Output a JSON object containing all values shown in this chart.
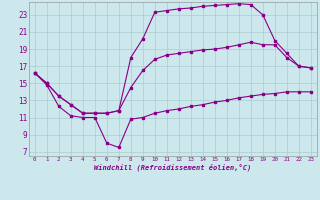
{
  "xlabel": "Windchill (Refroidissement éolien,°C)",
  "bg_color": "#cce8ed",
  "grid_color": "#aacccc",
  "line_color": "#880088",
  "xlim": [
    -0.5,
    23.5
  ],
  "ylim": [
    6.5,
    24.5
  ],
  "xticks": [
    0,
    1,
    2,
    3,
    4,
    5,
    6,
    7,
    8,
    9,
    10,
    11,
    12,
    13,
    14,
    15,
    16,
    17,
    18,
    19,
    20,
    21,
    22,
    23
  ],
  "yticks": [
    7,
    9,
    11,
    13,
    15,
    17,
    19,
    21,
    23
  ],
  "curve_top_x": [
    0,
    1,
    2,
    3,
    4,
    5,
    6,
    7,
    8,
    9,
    10,
    11,
    12,
    13,
    14,
    15,
    16,
    17,
    18,
    19,
    20,
    21,
    22,
    23
  ],
  "curve_top_y": [
    16.2,
    15.0,
    13.5,
    12.5,
    11.5,
    11.5,
    11.5,
    11.8,
    18.0,
    20.2,
    23.3,
    23.5,
    23.7,
    23.8,
    24.0,
    24.1,
    24.2,
    24.3,
    24.2,
    23.0,
    20.0,
    18.5,
    17.0,
    16.8
  ],
  "curve_mid_x": [
    0,
    1,
    2,
    3,
    4,
    5,
    6,
    7,
    8,
    9,
    10,
    11,
    12,
    13,
    14,
    15,
    16,
    17,
    18,
    19,
    20,
    21,
    22,
    23
  ],
  "curve_mid_y": [
    16.2,
    15.0,
    13.5,
    12.5,
    11.5,
    11.5,
    11.5,
    11.8,
    14.5,
    16.5,
    17.8,
    18.3,
    18.5,
    18.7,
    18.9,
    19.0,
    19.2,
    19.5,
    19.8,
    19.5,
    19.5,
    18.0,
    17.0,
    16.8
  ],
  "curve_bot_x": [
    0,
    1,
    2,
    3,
    4,
    5,
    6,
    7,
    8,
    9,
    10,
    11,
    12,
    13,
    14,
    15,
    16,
    17,
    18,
    19,
    20,
    21,
    22,
    23
  ],
  "curve_bot_y": [
    16.2,
    14.8,
    12.3,
    11.2,
    11.0,
    11.0,
    8.0,
    7.5,
    10.8,
    11.0,
    11.5,
    11.8,
    12.0,
    12.3,
    12.5,
    12.8,
    13.0,
    13.3,
    13.5,
    13.7,
    13.8,
    14.0,
    14.0,
    14.0
  ]
}
